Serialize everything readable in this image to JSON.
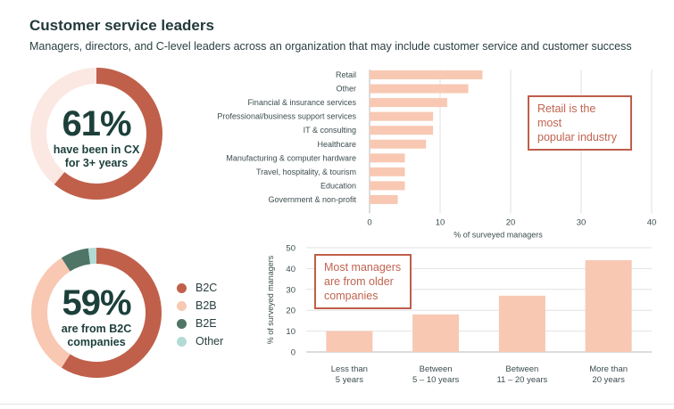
{
  "header": {
    "title": "Customer service leaders",
    "subtitle": "Managers, directors, and C-level leaders across an organization that may include customer service and customer success"
  },
  "donut_top": {
    "percent_text": "61%",
    "label_line1": "have been in CX",
    "label_line2": "for 3+ years",
    "value": 61,
    "color_fill": "#c0604b",
    "color_track": "#fbe8e2"
  },
  "donut_bottom": {
    "percent_text": "59%",
    "label_line1": "are from B2C",
    "label_line2": "companies",
    "segments": [
      {
        "name": "B2C",
        "value": 59,
        "color": "#c0604b"
      },
      {
        "name": "B2B",
        "value": 32,
        "color": "#f8c8b3"
      },
      {
        "name": "B2E",
        "value": 7,
        "color": "#4e7566"
      },
      {
        "name": "Other",
        "value": 2,
        "color": "#b3dbd6"
      }
    ]
  },
  "legend": [
    {
      "label": "B2C",
      "color": "#c0604b"
    },
    {
      "label": "B2B",
      "color": "#f8c8b3"
    },
    {
      "label": "B2E",
      "color": "#4e7566"
    },
    {
      "label": "Other",
      "color": "#b3dbd6"
    }
  ],
  "callouts": {
    "industry_line1": "Retail is the most",
    "industry_line2": "popular industry",
    "age_line1": "Most managers",
    "age_line2": "are from older",
    "age_line3": "companies"
  },
  "colors": {
    "bar": "#f8c8b3",
    "axis_text": "#3c4d4f",
    "grid": "#e2e2e2"
  },
  "chart_data": [
    {
      "type": "bar",
      "orientation": "horizontal",
      "title": "",
      "xlabel": "% of surveyed managers",
      "ylabel": "",
      "xlim": [
        0,
        40
      ],
      "ticks": [
        0,
        10,
        20,
        30,
        40
      ],
      "categories": [
        "Retail",
        "Other",
        "Financial & insurance services",
        "Professional/business support services",
        "IT & consulting",
        "Healthcare",
        "Manufacturing & computer hardware",
        "Travel, hospitality, & tourism",
        "Education",
        "Government & non-profit"
      ],
      "values": [
        16,
        14,
        11,
        9,
        9,
        8,
        5,
        5,
        5,
        4
      ]
    },
    {
      "type": "bar",
      "orientation": "vertical",
      "title": "",
      "xlabel": "",
      "ylabel": "% of surveyed managers",
      "ylim": [
        0,
        50
      ],
      "ticks": [
        0,
        10,
        20,
        30,
        40,
        50
      ],
      "categories": [
        [
          "Less than",
          "5 years"
        ],
        [
          "Between",
          "5 – 10 years"
        ],
        [
          "Between",
          "11 – 20 years"
        ],
        [
          "More than",
          "20 years"
        ]
      ],
      "values": [
        10,
        18,
        27,
        44
      ]
    }
  ]
}
